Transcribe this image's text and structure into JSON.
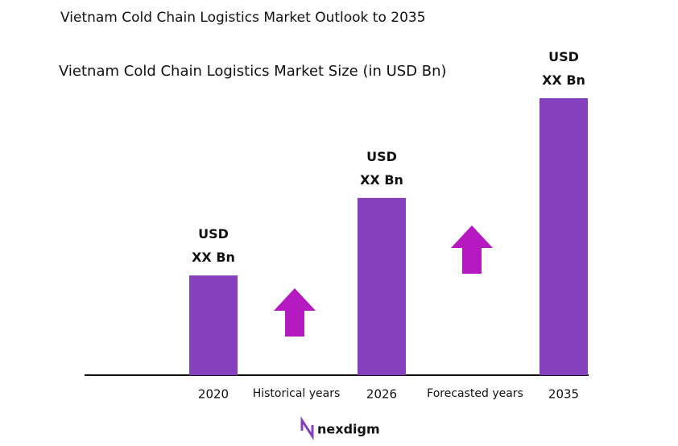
{
  "chart_data": {
    "type": "bar",
    "title": "Vietnam Cold Chain Logistics Market Outlook to 2035",
    "subtitle": "Vietnam Cold Chain Logistics Market Size (in USD Bn)",
    "categories": [
      "2020",
      "2026",
      "2035"
    ],
    "values": [
      3.6,
      6.4,
      10
    ],
    "value_labels": [
      "USD XX Bn",
      "USD XX Bn",
      "USD XX Bn"
    ],
    "color": "#8440bd",
    "ylim": [
      0,
      10
    ],
    "annotations": [
      "Historical years",
      "Forecasted years"
    ],
    "logo": "nexdigm"
  }
}
